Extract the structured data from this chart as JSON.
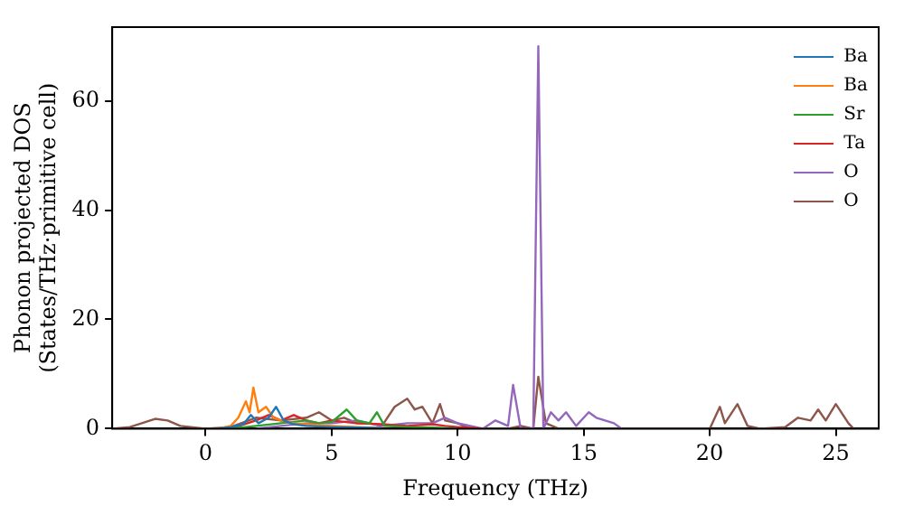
{
  "chart_data": {
    "type": "line",
    "xlabel": "Frequency (THz)",
    "ylabel": "Phonon projected DOS\n(States/THz·primitive cell)",
    "xlim": [
      -3.7,
      26.7
    ],
    "ylim": [
      0,
      73.5
    ],
    "xticks": [
      0,
      5,
      10,
      15,
      20,
      25
    ],
    "yticks": [
      0,
      20,
      40,
      60
    ],
    "grid": false,
    "legend": "top right",
    "marker": "none",
    "line_style": "solid",
    "series": [
      {
        "name": "Ba",
        "color": "#1f77b4",
        "x": [
          0.5,
          1,
          1.5,
          1.8,
          2.1,
          2.5,
          2.8,
          3.1,
          3.5,
          4,
          5,
          6,
          7
        ],
        "values": [
          0,
          0.3,
          0.8,
          2.5,
          1,
          2,
          4,
          1.5,
          0.8,
          0.5,
          0.3,
          0.2,
          0.1
        ]
      },
      {
        "name": "Ba",
        "color": "#ff7f0e",
        "x": [
          0.5,
          1,
          1.3,
          1.6,
          1.75,
          1.9,
          2.1,
          2.4,
          2.7,
          3,
          3.5,
          4,
          5,
          6,
          7
        ],
        "values": [
          0,
          0.5,
          2,
          5,
          3,
          7.5,
          3,
          4,
          2,
          1.5,
          1,
          0.8,
          0.5,
          0.3,
          0.1
        ]
      },
      {
        "name": "Sr",
        "color": "#2ca02c",
        "x": [
          1,
          2,
          3,
          4,
          4.5,
          5,
          5.6,
          6,
          6.5,
          6.8,
          7.1,
          8,
          9,
          10
        ],
        "values": [
          0,
          0.5,
          1,
          1.5,
          1,
          1.2,
          3.5,
          1.5,
          1,
          3,
          0.5,
          0.3,
          0.2,
          0
        ]
      },
      {
        "name": "Ta",
        "color": "#d62728",
        "x": [
          1,
          2,
          2.5,
          3,
          3.5,
          4,
          4.5,
          5,
          6,
          7,
          8,
          9,
          9.5,
          10,
          11
        ],
        "values": [
          0,
          1.5,
          2.5,
          1.5,
          2.5,
          1.5,
          1,
          1.5,
          1,
          0.8,
          0.5,
          0.8,
          0.5,
          0.3,
          0
        ]
      },
      {
        "name": "O",
        "color": "#9467bd",
        "x": [
          2,
          3,
          4,
          5,
          6,
          7,
          8,
          9,
          9.5,
          10,
          11,
          11.5,
          12,
          12.2,
          12.5,
          13,
          13.2,
          13.4,
          13.7,
          14,
          14.3,
          14.7,
          15.2,
          15.5,
          16.2,
          16.5
        ],
        "values": [
          0,
          0.5,
          1,
          1,
          1.5,
          0.5,
          1,
          1,
          2,
          1,
          0,
          1.5,
          0.5,
          8,
          0,
          0,
          70,
          0,
          3,
          1.5,
          3,
          0.5,
          3,
          2,
          1,
          0
        ]
      },
      {
        "name": "O",
        "color": "#8c564b",
        "x": [
          -3.7,
          -3,
          -2,
          -1.5,
          -1,
          0,
          1,
          2,
          3,
          4,
          4.5,
          5,
          5.5,
          6,
          6.5,
          7,
          7.5,
          8,
          8.3,
          8.6,
          9,
          9.3,
          9.5,
          10,
          10.5,
          11,
          12,
          12.5,
          13,
          13.2,
          13.5,
          14,
          20,
          20.4,
          20.6,
          21.1,
          21.5,
          22,
          23,
          23.5,
          24,
          24.3,
          24.6,
          25,
          25.5,
          25.7
        ],
        "values": [
          0,
          0.3,
          1.8,
          1.5,
          0.5,
          0,
          0.3,
          2,
          1.5,
          2,
          3,
          1.5,
          2,
          1,
          1,
          0.5,
          4,
          5.5,
          3.5,
          4,
          1,
          4.5,
          1.5,
          1,
          0,
          0,
          0,
          0.5,
          0,
          9.5,
          1,
          0,
          0,
          4,
          1,
          4.5,
          0.5,
          0,
          0.3,
          2,
          1.5,
          3.5,
          1.5,
          4.5,
          1,
          0
        ]
      }
    ]
  }
}
